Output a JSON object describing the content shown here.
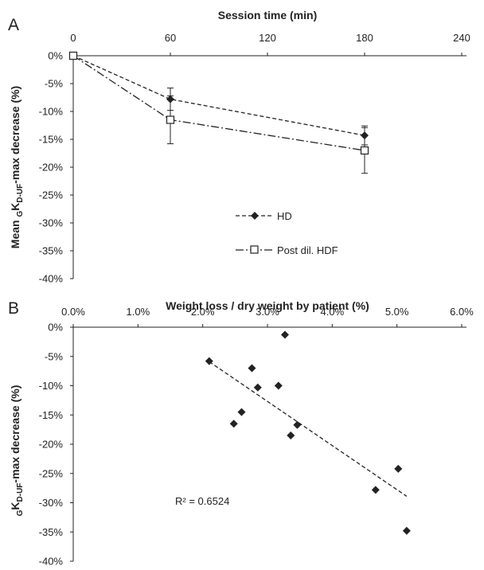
{
  "chart_data": [
    {
      "panel": "A",
      "type": "line",
      "xlabel": "Session time (min)",
      "ylabel_parts": [
        "Mean ",
        "G",
        "K",
        "D-UF",
        "-max  decrease (%)"
      ],
      "x_ticks": [
        0,
        60,
        120,
        180,
        240
      ],
      "y_ticks": [
        "0%",
        "-5%",
        "-10%",
        "-15%",
        "-20%",
        "-25%",
        "-30%",
        "-35%",
        "-40%"
      ],
      "xlim": [
        0,
        240
      ],
      "ylim": [
        -40,
        0
      ],
      "x_axis_position": "top",
      "grid": false,
      "series": [
        {
          "name": "HD",
          "color": "#222222",
          "line_style": "dashed",
          "marker": "filled-diamond",
          "x": [
            0,
            60,
            180
          ],
          "values": [
            0,
            -7.8,
            -14.3
          ],
          "error": [
            0,
            2.0,
            1.7
          ]
        },
        {
          "name": "Post dil. HDF",
          "color": "#222222",
          "line_style": "dash-dot",
          "marker": "open-square",
          "x": [
            0,
            60,
            180
          ],
          "values": [
            0,
            -11.5,
            -17.0
          ],
          "error": [
            0,
            4.3,
            4.1
          ]
        }
      ]
    },
    {
      "panel": "B",
      "type": "scatter",
      "xlabel": "Weight loss / dry weight by patient (%)",
      "ylabel_parts": [
        "",
        "G",
        "K",
        "D-UF",
        "-max  decrease (%)"
      ],
      "x_ticks": [
        "0.0%",
        "1.0%",
        "2.0%",
        "3.0%",
        "4.0%",
        "5.0%",
        "6.0%"
      ],
      "y_ticks": [
        "0%",
        "-5%",
        "-10%",
        "-15%",
        "-20%",
        "-25%",
        "-30%",
        "-35%",
        "-40%"
      ],
      "xlim": [
        0,
        6
      ],
      "ylim": [
        -40,
        0
      ],
      "x_axis_position": "top",
      "grid": false,
      "points": [
        {
          "x": 2.1,
          "y": -5.8
        },
        {
          "x": 2.48,
          "y": -16.5
        },
        {
          "x": 2.6,
          "y": -14.5
        },
        {
          "x": 2.76,
          "y": -7.0
        },
        {
          "x": 2.85,
          "y": -10.3
        },
        {
          "x": 3.17,
          "y": -10.0
        },
        {
          "x": 3.27,
          "y": -1.3
        },
        {
          "x": 3.36,
          "y": -18.5
        },
        {
          "x": 3.46,
          "y": -16.7
        },
        {
          "x": 4.67,
          "y": -27.8
        },
        {
          "x": 5.02,
          "y": -24.2
        },
        {
          "x": 5.15,
          "y": -34.8
        }
      ],
      "trendline": {
        "x": [
          2.1,
          5.15
        ],
        "y": [
          -5.9,
          -28.9
        ],
        "style": "dashed"
      },
      "annotation": "R² = 0.6524"
    }
  ]
}
